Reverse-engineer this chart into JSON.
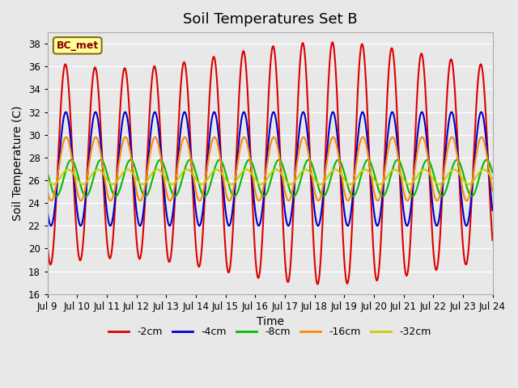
{
  "title": "Soil Temperatures Set B",
  "xlabel": "Time",
  "ylabel": "Soil Temperature (C)",
  "annotation": "BC_met",
  "ylim": [
    16,
    39
  ],
  "yticks": [
    16,
    18,
    20,
    22,
    24,
    26,
    28,
    30,
    32,
    34,
    36,
    38
  ],
  "xtick_labels": [
    "Jul 9",
    "Jul 10",
    "Jul 11",
    "Jul 12",
    "Jul 13",
    "Jul 14",
    "Jul 15",
    "Jul 16",
    "Jul 17",
    "Jul 18",
    "Jul 19",
    "Jul 20",
    "Jul 21",
    "Jul 22",
    "Jul 23",
    "Jul 24"
  ],
  "series_labels": [
    "-2cm",
    "-4cm",
    "-8cm",
    "-16cm",
    "-32cm"
  ],
  "series_colors": [
    "#dd0000",
    "#0000cc",
    "#00bb00",
    "#ff8800",
    "#cccc00"
  ],
  "bg_color": "#e8e8e8",
  "grid_color": "#ffffff",
  "linewidth": 1.5
}
